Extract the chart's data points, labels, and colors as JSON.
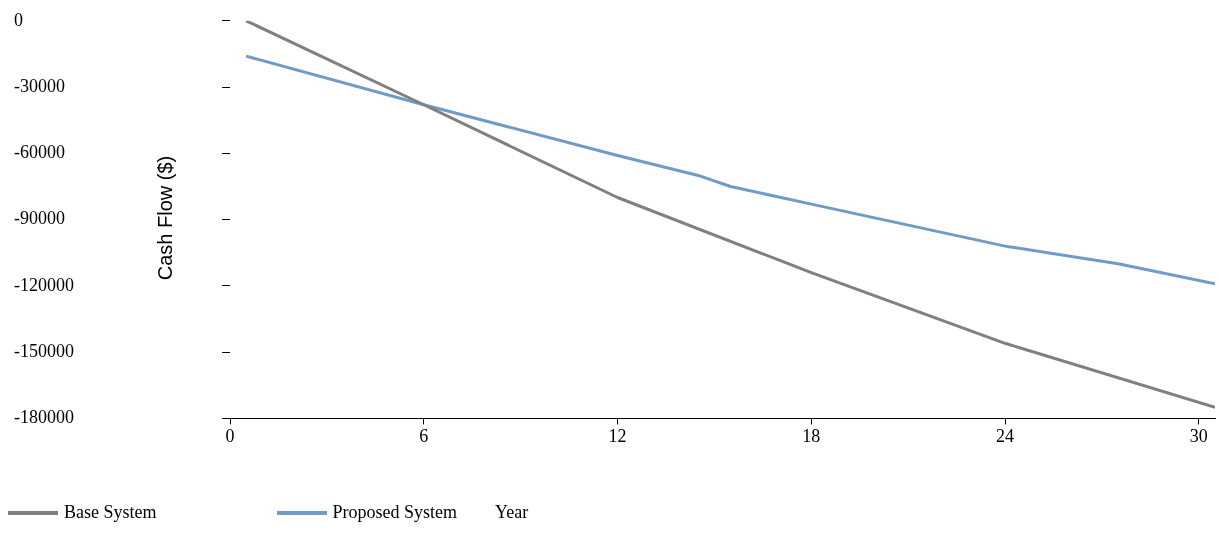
{
  "chart_data": {
    "type": "line",
    "xlabel": "Year",
    "ylabel": "Cash Flow ($)",
    "xlim": [
      0,
      30.5
    ],
    "xticks": [
      0,
      6,
      12,
      18,
      24,
      30
    ],
    "ylim": [
      -180000,
      0
    ],
    "yticks": [
      0,
      -30000,
      -60000,
      -90000,
      -120000,
      -150000,
      -180000
    ],
    "grid": false,
    "legend": "bottom left",
    "marker": "none",
    "line_style": "solid",
    "series": [
      {
        "name": "Base System",
        "color": "#808080",
        "x": [
          0.5,
          6,
          12,
          18,
          24,
          30.5
        ],
        "values": [
          0,
          -38000,
          -80000,
          -114000,
          -146000,
          -175000
        ]
      },
      {
        "name": "Proposed System",
        "color": "#6f9bc8",
        "x": [
          0.5,
          6,
          12,
          14.5,
          15.5,
          18,
          24,
          27.5,
          30.5
        ],
        "values": [
          -16000,
          -38000,
          -61000,
          -70000,
          -75000,
          -83000,
          -102000,
          -110000,
          -119000
        ]
      }
    ]
  }
}
